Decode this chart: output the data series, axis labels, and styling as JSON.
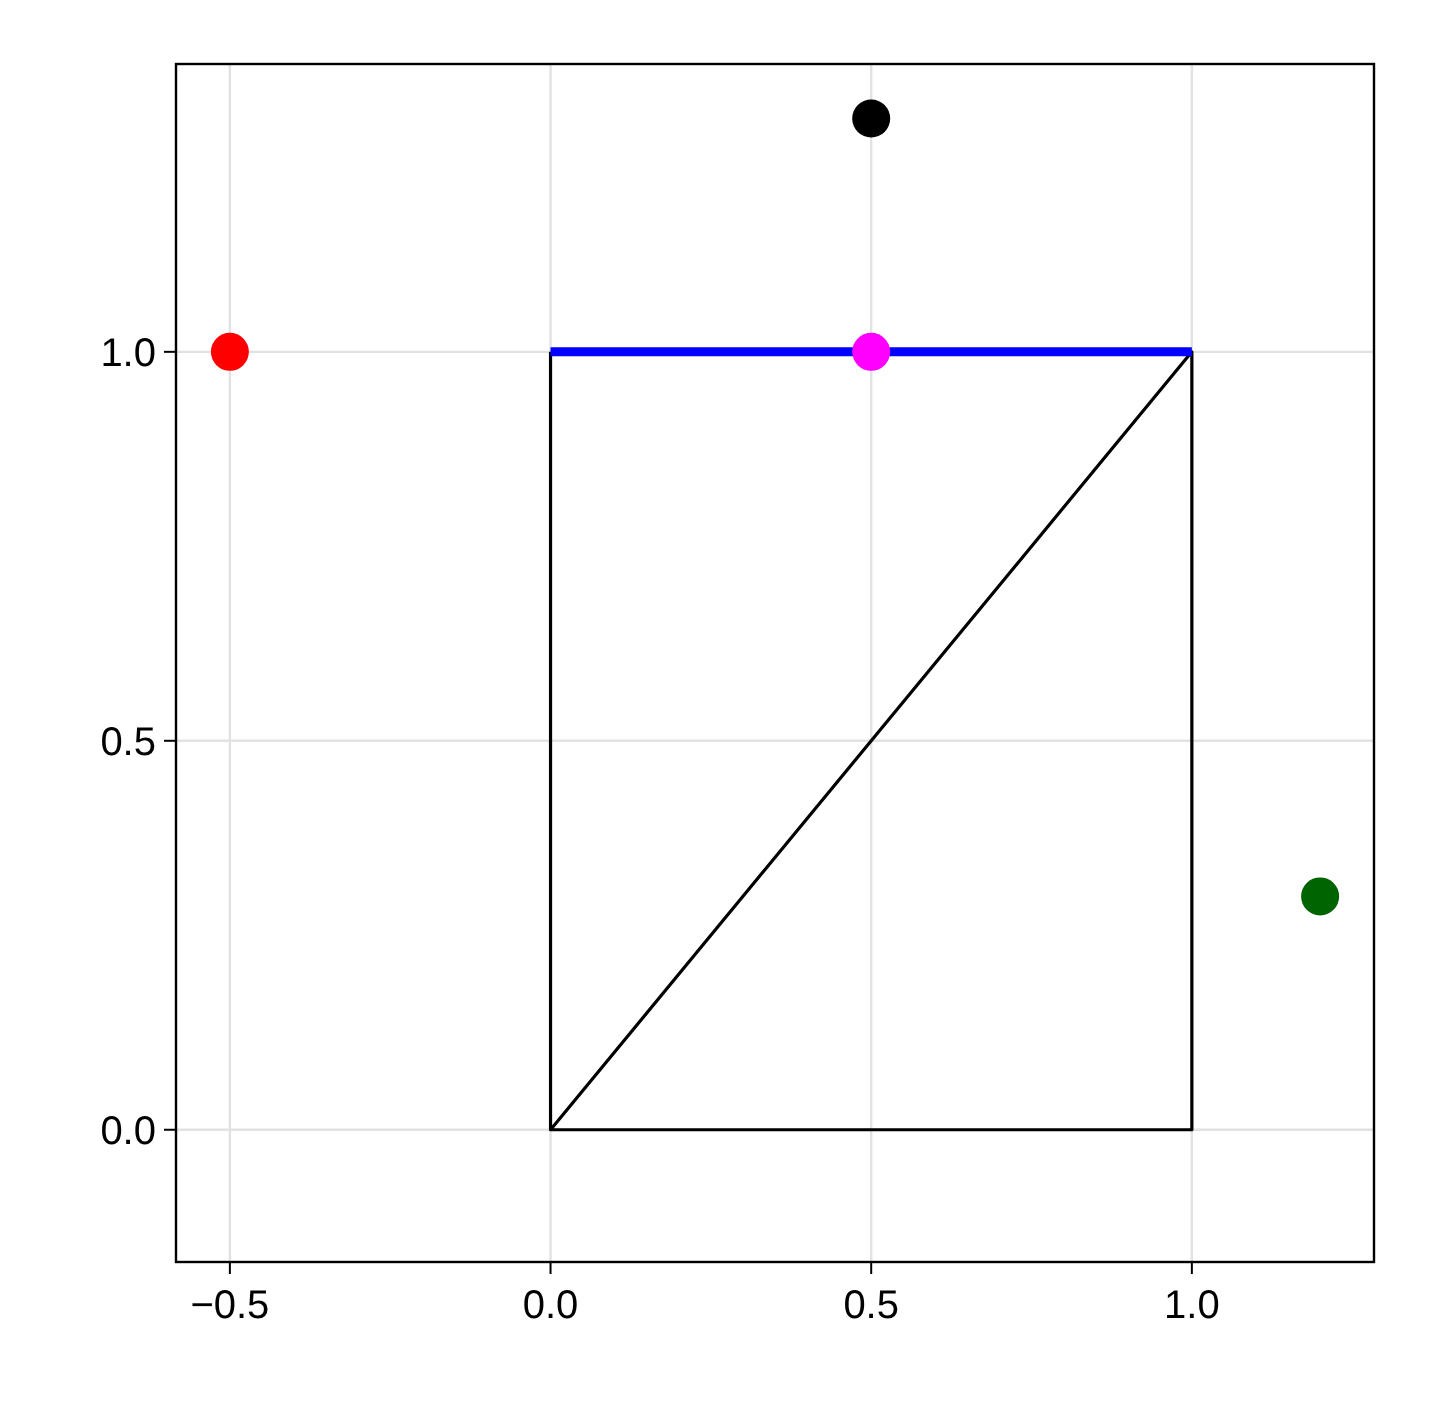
{
  "chart_data": {
    "type": "line",
    "xlim": [
      -0.584,
      1.284
    ],
    "ylim": [
      -0.17,
      1.37
    ],
    "xticks": [
      {
        "value": -0.5,
        "label": "−0.5"
      },
      {
        "value": 0,
        "label": "0.0"
      },
      0.5,
      {
        "value": 1,
        "label": "1.0"
      }
    ],
    "yticks": [
      {
        "value": 0,
        "label": "0.0"
      },
      0.5,
      {
        "value": 1,
        "label": "1.0"
      }
    ],
    "grid": true,
    "series": [
      {
        "color": "#000000",
        "x": [
          0,
          0,
          1,
          1,
          0
        ],
        "values": [
          1,
          0,
          0,
          1,
          0
        ],
        "marker": "none"
      },
      {
        "color": "#0000ff",
        "x": [
          0,
          1
        ],
        "values": [
          1,
          1
        ],
        "marker": "none"
      },
      {
        "type": "scatter",
        "x": [
          -0.5,
          0.5,
          0.5,
          1.2
        ],
        "values": [
          1,
          1.3,
          1,
          0.3
        ],
        "colors": [
          "#ff0000",
          "#000000",
          "#ff00ff",
          "#006400"
        ],
        "marker": "circle"
      }
    ]
  }
}
